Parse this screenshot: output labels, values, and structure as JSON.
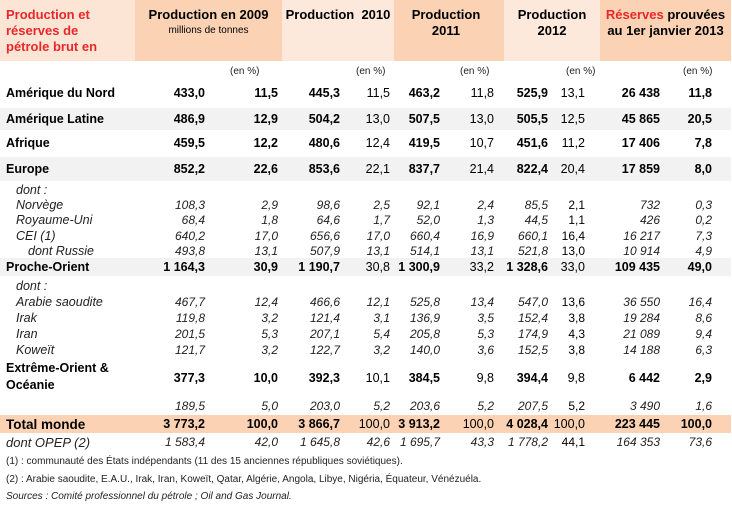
{
  "header": {
    "title_lines": [
      "Production et",
      "réserves de",
      "pétrole brut  en"
    ],
    "col2009": "Production en 2009",
    "unit": "millions de tonnes",
    "col2010": "Production  2010",
    "col2011_l1": "Production",
    "col2011_l2": "2011",
    "col2012_l1": "Production",
    "col2012_l2": "2012",
    "reserves_red": "Réserves",
    "reserves_rest": " prouvées",
    "reserves_l2": "au 1er janvier 2013",
    "en_pct": "(en %)"
  },
  "rows": [
    {
      "label": "Amérique du Nord",
      "style": "main",
      "band": false,
      "v": [
        "433,0",
        "11,5",
        "445,3",
        "11,5",
        "463,2",
        "11,8",
        "525,9",
        "13,1",
        "26 438",
        "11,8"
      ]
    },
    {
      "label": "Amérique Latine",
      "style": "main",
      "band": true,
      "v": [
        "486,9",
        "12,9",
        "504,2",
        "13,0",
        "507,5",
        "13,0",
        "505,5",
        "12,5",
        "45 865",
        "20,5"
      ]
    },
    {
      "label": "Afrique",
      "style": "main",
      "band": false,
      "v": [
        "459,5",
        "12,2",
        "480,6",
        "12,4",
        "419,5",
        "10,7",
        "451,6",
        "11,2",
        "17 406",
        "7,8"
      ]
    },
    {
      "label": "Europe",
      "style": "main",
      "band": true,
      "v": [
        "852,2",
        "22,6",
        "853,6",
        "22,1",
        "837,7",
        "21,4",
        "822,4",
        "20,4",
        "17 859",
        "8,0"
      ]
    },
    {
      "label": "dont :",
      "style": "sub",
      "band": false,
      "v": [
        "",
        "",
        "",
        "",
        "",
        "",
        "",
        "",
        "",
        ""
      ]
    },
    {
      "label": "Norvège",
      "style": "sub",
      "band": false,
      "v": [
        "108,3",
        "2,9",
        "98,6",
        "2,5",
        "92,1",
        "2,4",
        "85,5",
        "2,1",
        "732",
        "0,3"
      ]
    },
    {
      "label": "Royaume-Uni",
      "style": "sub",
      "band": false,
      "v": [
        "68,4",
        "1,8",
        "64,6",
        "1,7",
        "52,0",
        "1,3",
        "44,5",
        "1,1",
        "426",
        "0,2"
      ]
    },
    {
      "label": "CEI (1)",
      "style": "sub",
      "band": false,
      "v": [
        "640,2",
        "17,0",
        "656,6",
        "17,0",
        "660,4",
        "16,9",
        "660,1",
        "16,4",
        "16 217",
        "7,3"
      ]
    },
    {
      "label": "dont Russie",
      "style": "subsub",
      "band": false,
      "v": [
        "493,8",
        "13,1",
        "507,9",
        "13,1",
        "514,1",
        "13,1",
        "521,8",
        "13,0",
        "10 914",
        "4,9"
      ]
    },
    {
      "label": "Proche-Orient",
      "style": "main",
      "band": true,
      "v": [
        "1 164,3",
        "30,9",
        "1 190,7",
        "30,8",
        "1 300,9",
        "33,2",
        "1 328,6",
        "33,0",
        "109 435",
        "49,0"
      ]
    },
    {
      "label": "dont :",
      "style": "sub",
      "band": false,
      "v": [
        "",
        "",
        "",
        "",
        "",
        "",
        "",
        "",
        "",
        ""
      ]
    },
    {
      "label": "Arabie saoudite",
      "style": "sub",
      "band": false,
      "v": [
        "467,7",
        "12,4",
        "466,6",
        "12,1",
        "525,8",
        "13,4",
        "547,0",
        "13,6",
        "36 550",
        "16,4"
      ]
    },
    {
      "label": "Irak",
      "style": "sub",
      "band": false,
      "v": [
        "119,8",
        "3,2",
        "121,4",
        "3,1",
        "136,9",
        "3,5",
        "152,4",
        "3,8",
        "19 284",
        "8,6"
      ]
    },
    {
      "label": "Iran",
      "style": "sub",
      "band": false,
      "v": [
        "201,5",
        "5,3",
        "207,1",
        "5,4",
        "205,8",
        "5,3",
        "174,9",
        "4,3",
        "21 089",
        "9,4"
      ]
    },
    {
      "label": "Koweït",
      "style": "sub",
      "band": false,
      "v": [
        "121,7",
        "3,2",
        "122,7",
        "3,2",
        "140,0",
        "3,6",
        "152,5",
        "3,8",
        "14 188",
        "6,3"
      ]
    },
    {
      "label": "Extrême-Orient & Océanie",
      "style": "main2",
      "band": false,
      "v": [
        "377,3",
        "10,0",
        "392,3",
        "10,1",
        "384,5",
        "9,8",
        "394,4",
        "9,8",
        "6 442",
        "2,9"
      ]
    },
    {
      "label": "",
      "style": "sub",
      "band": false,
      "v": [
        "189,5",
        "5,0",
        "203,0",
        "5,2",
        "203,6",
        "5,2",
        "207,5",
        "5,2",
        "3 490",
        "1,6"
      ]
    },
    {
      "label": "Total monde",
      "style": "total",
      "band": false,
      "v": [
        "3 773,2",
        "100,0",
        "3 866,7",
        "100,0",
        "3 913,2",
        "100,0",
        "4 028,4",
        "100,0",
        "223 445",
        "100,0"
      ]
    },
    {
      "label": "dont OPEP (2)",
      "style": "opep",
      "band": false,
      "v": [
        "1 583,4",
        "42,0",
        "1 645,8",
        "42,6",
        "1 695,7",
        "43,3",
        "1 778,2",
        "44,1",
        "164 353",
        "73,6"
      ]
    }
  ],
  "notes": {
    "n1": "(1) : communauté des États indépendants (11 des 15 anciennes républiques soviétiques).",
    "n2": "(2) : Arabie saoudite, E.A.U., Irak, Iran, Koweït, Qatar, Algérie, Angola, Libye, Nigéria, Équateur, Vénézuéla.",
    "sources": "Sources : Comité professionnel du pétrole ; Oil and Gas Journal."
  },
  "colors": {
    "header_dark": "#fbd3b4",
    "header_light": "#fde9dc",
    "band": "#f2f2f2",
    "red": "#e8272b"
  }
}
